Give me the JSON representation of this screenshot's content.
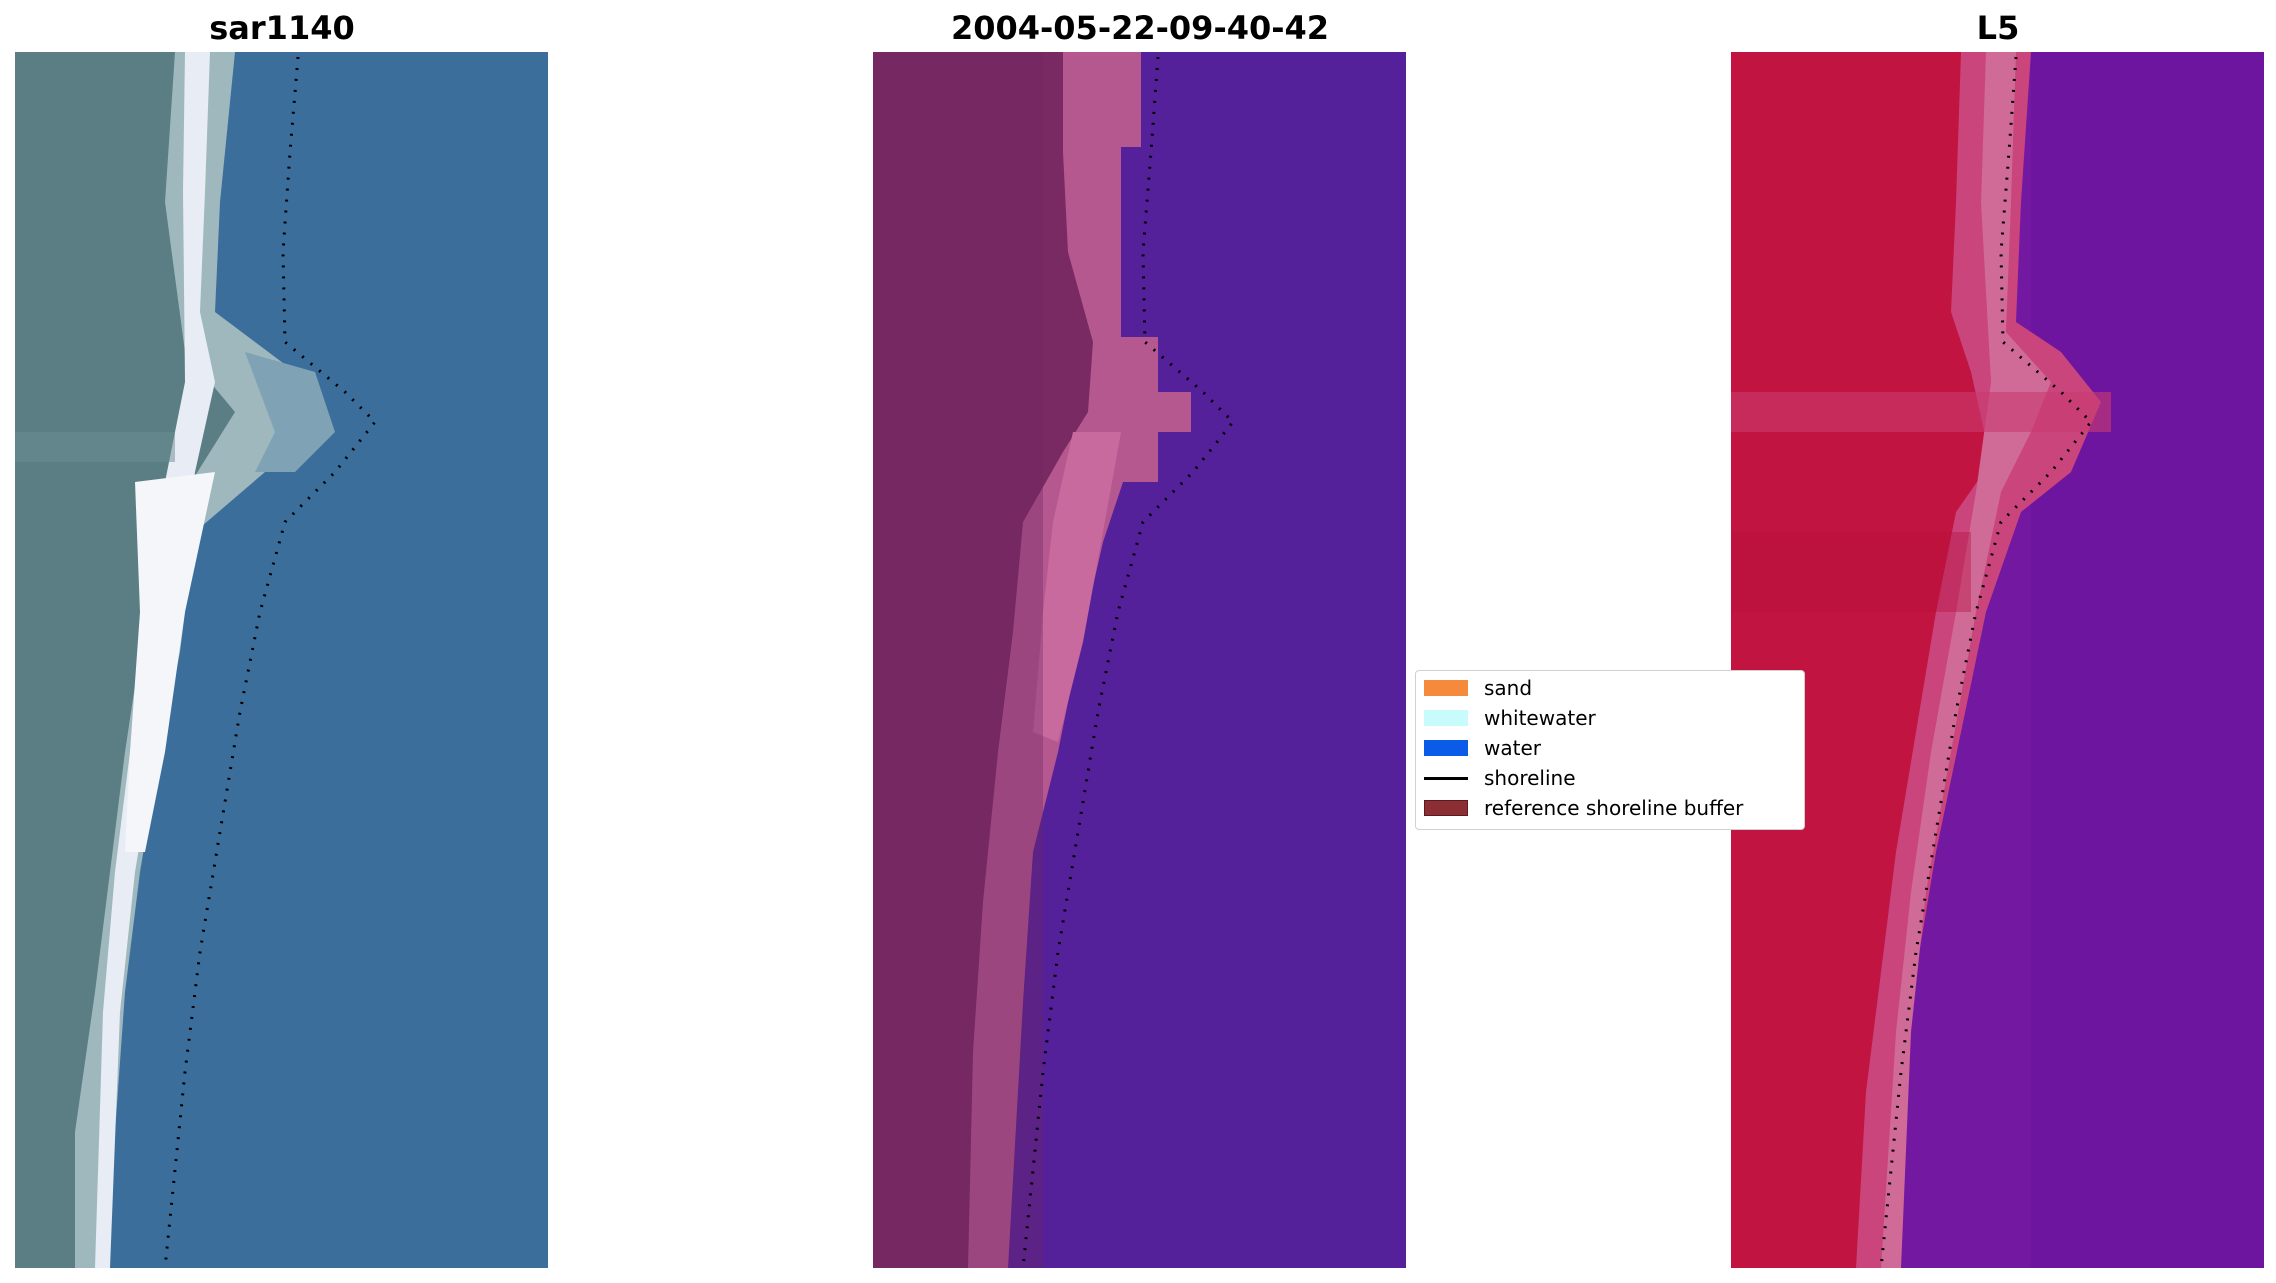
{
  "panels": [
    {
      "title": "sar1140"
    },
    {
      "title": "2004-05-22-09-40-42"
    },
    {
      "title": "L5"
    }
  ],
  "legend": {
    "items": [
      {
        "label": "sand",
        "color": "#f58a3c"
      },
      {
        "label": "whitewater",
        "color": "#c8fbfb"
      },
      {
        "label": "water",
        "color": "#0a5be8"
      },
      {
        "label": "shoreline",
        "color": "#000000"
      },
      {
        "label": "reference shoreline buffer",
        "color": "#8b2f35"
      }
    ]
  },
  "colors": {
    "rgb_water": "#3c6e9c",
    "rgb_land": "#5a7e84",
    "class_water": "#54219a",
    "class_sand": "#7a2a62",
    "class_whitewater": "#c05e98",
    "index_land": "#c21440",
    "index_water": "#7318a0"
  }
}
